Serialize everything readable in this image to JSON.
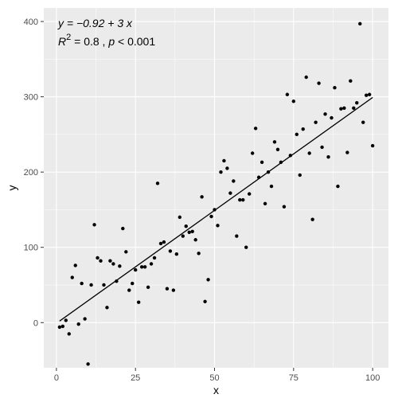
{
  "chart_data": {
    "type": "scatter",
    "xlabel": "x",
    "ylabel": "y",
    "xlim": [
      -4,
      105
    ],
    "ylim": [
      -60,
      418
    ],
    "x_ticks": [
      0,
      25,
      50,
      75,
      100
    ],
    "y_ticks": [
      0,
      100,
      200,
      300,
      400
    ],
    "grid": true,
    "background": "#EBEBEB",
    "point_color": "#000000",
    "annotation": {
      "equation": "y = −0.92 + 3 x",
      "r2_label": "R",
      "r2_sup": "2",
      "r2_value": " = 0.8 , ",
      "p_label": "p",
      "p_value": " < 0.001"
    },
    "regression": {
      "intercept": -0.92,
      "slope": 3.0,
      "x_range": [
        1,
        100
      ]
    },
    "points": [
      [
        1,
        -6
      ],
      [
        2,
        -5
      ],
      [
        3,
        3
      ],
      [
        4,
        -15
      ],
      [
        5,
        60
      ],
      [
        6,
        76
      ],
      [
        7,
        -2
      ],
      [
        8,
        52
      ],
      [
        9,
        5
      ],
      [
        10,
        -55
      ],
      [
        11,
        50
      ],
      [
        12,
        130
      ],
      [
        13,
        86
      ],
      [
        14,
        82
      ],
      [
        15,
        50
      ],
      [
        16,
        20
      ],
      [
        17,
        82
      ],
      [
        18,
        78
      ],
      [
        19,
        55
      ],
      [
        20,
        75
      ],
      [
        21,
        125
      ],
      [
        22,
        94
      ],
      [
        23,
        43
      ],
      [
        24,
        52
      ],
      [
        25,
        70
      ],
      [
        26,
        27
      ],
      [
        27,
        74
      ],
      [
        28,
        74
      ],
      [
        29,
        47
      ],
      [
        30,
        78
      ],
      [
        31,
        86
      ],
      [
        32,
        185
      ],
      [
        33,
        105
      ],
      [
        34,
        107
      ],
      [
        35,
        45
      ],
      [
        36,
        95
      ],
      [
        37,
        43
      ],
      [
        38,
        91
      ],
      [
        39,
        140
      ],
      [
        40,
        115
      ],
      [
        41,
        128
      ],
      [
        42,
        120
      ],
      [
        43,
        121
      ],
      [
        44,
        110
      ],
      [
        45,
        92
      ],
      [
        46,
        167
      ],
      [
        47,
        28
      ],
      [
        48,
        57
      ],
      [
        49,
        141
      ],
      [
        50,
        150
      ],
      [
        51,
        129
      ],
      [
        52,
        200
      ],
      [
        53,
        215
      ],
      [
        54,
        205
      ],
      [
        55,
        172
      ],
      [
        56,
        188
      ],
      [
        57,
        115
      ],
      [
        58,
        163
      ],
      [
        59,
        163
      ],
      [
        60,
        100
      ],
      [
        61,
        171
      ],
      [
        62,
        225
      ],
      [
        63,
        258
      ],
      [
        64,
        193
      ],
      [
        65,
        213
      ],
      [
        66,
        158
      ],
      [
        67,
        200
      ],
      [
        68,
        181
      ],
      [
        69,
        240
      ],
      [
        70,
        230
      ],
      [
        71,
        213
      ],
      [
        72,
        154
      ],
      [
        73,
        303
      ],
      [
        74,
        222
      ],
      [
        75,
        294
      ],
      [
        76,
        250
      ],
      [
        77,
        196
      ],
      [
        78,
        257
      ],
      [
        79,
        326
      ],
      [
        80,
        225
      ],
      [
        81,
        137
      ],
      [
        82,
        266
      ],
      [
        83,
        318
      ],
      [
        84,
        233
      ],
      [
        85,
        277
      ],
      [
        86,
        220
      ],
      [
        87,
        272
      ],
      [
        88,
        312
      ],
      [
        89,
        181
      ],
      [
        90,
        284
      ],
      [
        91,
        285
      ],
      [
        92,
        226
      ],
      [
        93,
        321
      ],
      [
        94,
        285
      ],
      [
        95,
        292
      ],
      [
        96,
        397
      ],
      [
        97,
        266
      ],
      [
        98,
        302
      ],
      [
        99,
        303
      ],
      [
        100,
        235
      ]
    ]
  }
}
